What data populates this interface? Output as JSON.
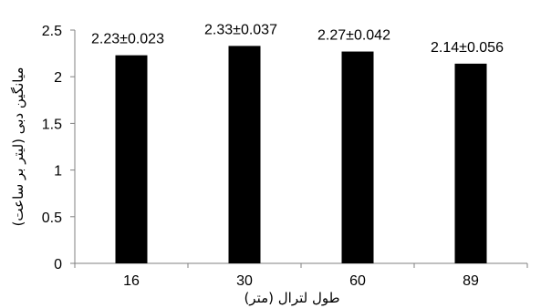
{
  "chart_data": {
    "type": "bar",
    "categories": [
      "16",
      "30",
      "60",
      "89"
    ],
    "values": [
      2.23,
      2.33,
      2.27,
      2.14
    ],
    "data_labels": [
      "2.23±0.023",
      "2.33±0.037",
      "2.27±0.042",
      "2.14±0.056"
    ],
    "xlabel": "طول لترال (متر)",
    "ylabel": "میانگین دبی (لیتر بر ساعت)",
    "ylim": [
      0,
      2.5
    ],
    "yticks": [
      "0",
      "0.5",
      "1",
      "1.5",
      "2",
      "2.5"
    ],
    "grid": false,
    "legend": false,
    "bar_color": "#000000",
    "axis_color": "#808080"
  }
}
